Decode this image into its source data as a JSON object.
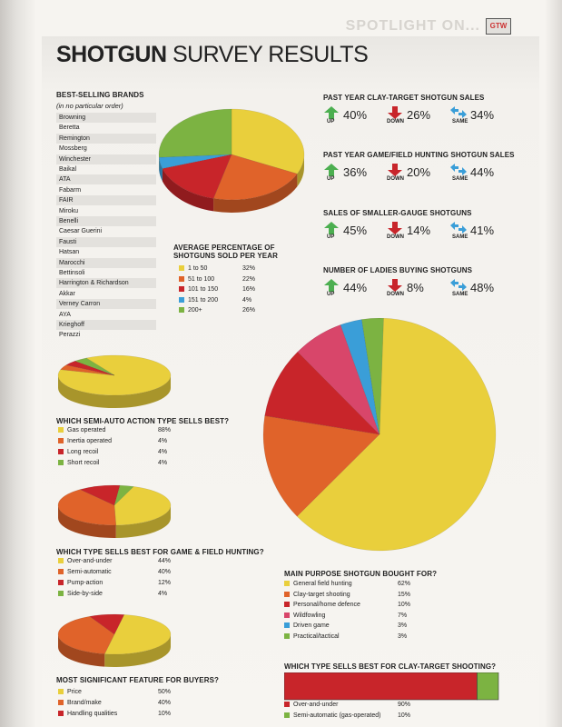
{
  "header": {
    "spotlight": "SPOTLIGHT ON...",
    "badge": "GTW"
  },
  "title": {
    "bold": "SHOTGUN",
    "rest": " SURVEY RESULTS"
  },
  "brands": {
    "heading": "BEST-SELLING BRANDS",
    "note": "(in no particular order)",
    "items": [
      "Browning",
      "Beretta",
      "Remington",
      "Mossberg",
      "Winchester",
      "Baikal",
      "ATA",
      "Fabarm",
      "FAIR",
      "Miroku",
      "Benelli",
      "Caesar Guerini",
      "Fausti",
      "Hatsan",
      "Marocchi",
      "Bettinsoli",
      "Harrington & Richardson",
      "Akkar",
      "Verney Carron",
      "AYA",
      "Krieghoff",
      "Perazzi"
    ]
  },
  "arrow_labels": {
    "up": "UP",
    "down": "DOWN",
    "same": "SAME"
  },
  "trends": [
    {
      "title": "PAST YEAR CLAY-TARGET SHOTGUN SALES",
      "up": "40%",
      "down": "26%",
      "same": "34%"
    },
    {
      "title": "PAST YEAR GAME/FIELD HUNTING SHOTGUN SALES",
      "up": "36%",
      "down": "20%",
      "same": "44%"
    },
    {
      "title": "SALES OF SMALLER-GAUGE SHOTGUNS",
      "up": "45%",
      "down": "14%",
      "same": "41%"
    },
    {
      "title": "NUMBER OF LADIES BUYING SHOTGUNS",
      "up": "44%",
      "down": "8%",
      "same": "48%"
    }
  ],
  "colors": {
    "yellow": "#e9cf3c",
    "orange": "#e0632a",
    "red": "#c8252a",
    "blue": "#3a9ed8",
    "green": "#7cb342",
    "pink": "#d8466a"
  },
  "chart_data": [
    {
      "type": "pie",
      "title": "AVERAGE PERCENTAGE OF SHOTGUNS SOLD PER YEAR",
      "labels": [
        "1 to 50",
        "51 to 100",
        "101 to 150",
        "151 to 200",
        "200+"
      ],
      "values": [
        32,
        22,
        16,
        4,
        26
      ],
      "value_labels": [
        "32%",
        "22%",
        "16%",
        "4%",
        "26%"
      ],
      "colors": [
        "#e9cf3c",
        "#e0632a",
        "#c8252a",
        "#3a9ed8",
        "#7cb342"
      ]
    },
    {
      "type": "pie",
      "title": "WHICH SEMI-AUTO ACTION TYPE SELLS BEST?",
      "labels": [
        "Gas operated",
        "Inertia operated",
        "Long recoil",
        "Short recoil"
      ],
      "values": [
        88,
        4,
        4,
        4
      ],
      "value_labels": [
        "88%",
        "4%",
        "4%",
        "4%"
      ],
      "colors": [
        "#e9cf3c",
        "#e0632a",
        "#c8252a",
        "#7cb342"
      ]
    },
    {
      "type": "pie",
      "title": "WHICH TYPE SELLS BEST FOR GAME & FIELD HUNTING?",
      "labels": [
        "Over-and-under",
        "Semi-automatic",
        "Pump-action",
        "Side-by-side"
      ],
      "values": [
        44,
        40,
        12,
        4
      ],
      "value_labels": [
        "44%",
        "40%",
        "12%",
        "4%"
      ],
      "colors": [
        "#e9cf3c",
        "#e0632a",
        "#c8252a",
        "#7cb342"
      ]
    },
    {
      "type": "pie",
      "title": "MOST SIGNIFICANT FEATURE FOR BUYERS?",
      "labels": [
        "Price",
        "Brand/make",
        "Handling qualities"
      ],
      "values": [
        50,
        40,
        10
      ],
      "value_labels": [
        "50%",
        "40%",
        "10%"
      ],
      "colors": [
        "#e9cf3c",
        "#e0632a",
        "#c8252a"
      ]
    },
    {
      "type": "pie",
      "title": "MAIN PURPOSE SHOTGUN BOUGHT FOR?",
      "labels": [
        "General field hunting",
        "Clay-target shooting",
        "Personal/home defence",
        "Wildfowling",
        "Driven game",
        "Practical/tactical"
      ],
      "values": [
        62,
        15,
        10,
        7,
        3,
        3
      ],
      "value_labels": [
        "62%",
        "15%",
        "10%",
        "7%",
        "3%",
        "3%"
      ],
      "colors": [
        "#e9cf3c",
        "#e0632a",
        "#c8252a",
        "#d8466a",
        "#3a9ed8",
        "#7cb342"
      ]
    },
    {
      "type": "bar",
      "title": "WHICH TYPE SELLS BEST FOR CLAY-TARGET SHOOTING?",
      "labels": [
        "Over-and-under",
        "Semi-automatic (gas-operated)"
      ],
      "values": [
        90,
        10
      ],
      "value_labels": [
        "90%",
        "10%"
      ],
      "colors": [
        "#c8252a",
        "#7cb342"
      ]
    }
  ]
}
